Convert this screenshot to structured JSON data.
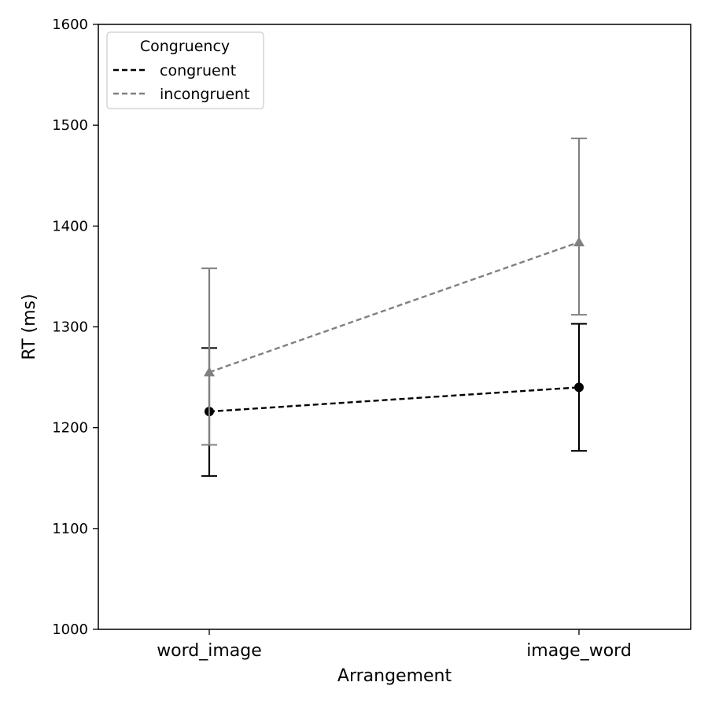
{
  "chart_data": {
    "type": "line",
    "categories": [
      "word_image",
      "image_word"
    ],
    "xlabel": "Arrangement",
    "ylabel": "RT (ms)",
    "ylim": [
      1000,
      1600
    ],
    "yticks": [
      1000,
      1100,
      1200,
      1300,
      1400,
      1500,
      1600
    ],
    "grid": false,
    "legend": {
      "title": "Congruency",
      "placement": "top-left"
    },
    "series": [
      {
        "name": "congruent",
        "color": "#000000",
        "marker": "circle",
        "line_style": "dashed",
        "values": [
          1216,
          1240
        ],
        "error_low": [
          1152,
          1177
        ],
        "error_high": [
          1279,
          1303
        ]
      },
      {
        "name": "incongruent",
        "color": "#808080",
        "marker": "triangle",
        "line_style": "dashed",
        "values": [
          1255,
          1384
        ],
        "error_low": [
          1183,
          1312
        ],
        "error_high": [
          1358,
          1487
        ]
      }
    ]
  }
}
